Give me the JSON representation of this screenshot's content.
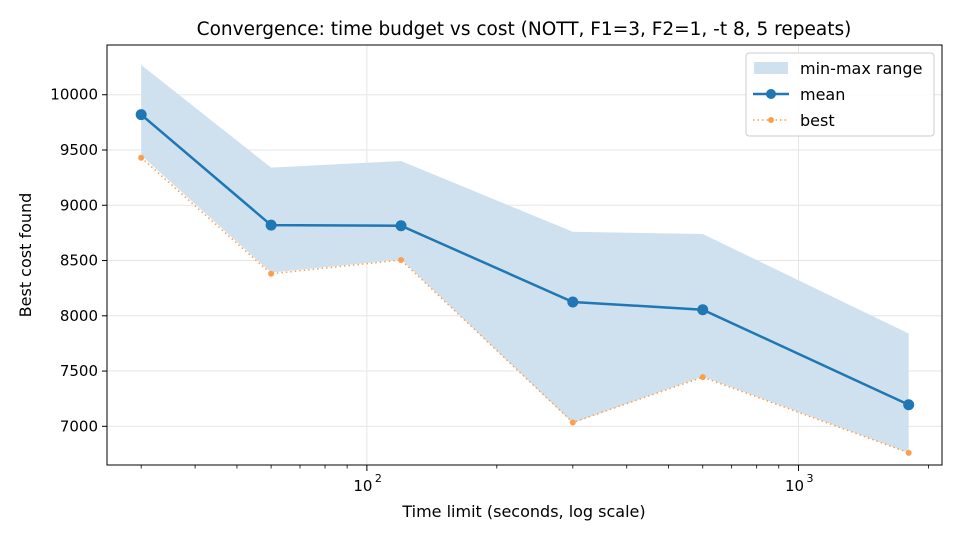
{
  "chart_data": {
    "type": "line",
    "title": "Convergence: time budget vs cost (NOTT, F1=3, F2=1, -t 8, 5 repeats)",
    "xlabel": "Time limit (seconds, log scale)",
    "ylabel": "Best cost found",
    "xscale": "log",
    "xlim": [
      25,
      2150
    ],
    "ylim": [
      6650,
      10450
    ],
    "x": [
      30,
      60,
      120,
      300,
      600,
      1800
    ],
    "yticks": [
      7000,
      7500,
      8000,
      8500,
      9000,
      9500,
      10000
    ],
    "xticks": [
      {
        "value": 100,
        "base": "10",
        "exp": "2"
      },
      {
        "value": 1000,
        "base": "10",
        "exp": "3"
      }
    ],
    "grid": true,
    "legend_position": "upper right",
    "band": {
      "name": "min-max range",
      "min": [
        9450,
        8390,
        8510,
        7030,
        7450,
        6760
      ],
      "max": [
        10270,
        9340,
        9400,
        8760,
        8740,
        7840
      ],
      "color": "#cfe1ef"
    },
    "series": [
      {
        "name": "mean",
        "values": [
          9820,
          8820,
          8815,
          8125,
          8055,
          7195
        ],
        "color": "#1f77b4",
        "style": "solid",
        "marker": "circle"
      },
      {
        "name": "best",
        "values": [
          9430,
          8380,
          8505,
          7035,
          7445,
          6760
        ],
        "color": "#ff9e4a",
        "style": "dotted",
        "marker": "small-circle"
      }
    ]
  }
}
